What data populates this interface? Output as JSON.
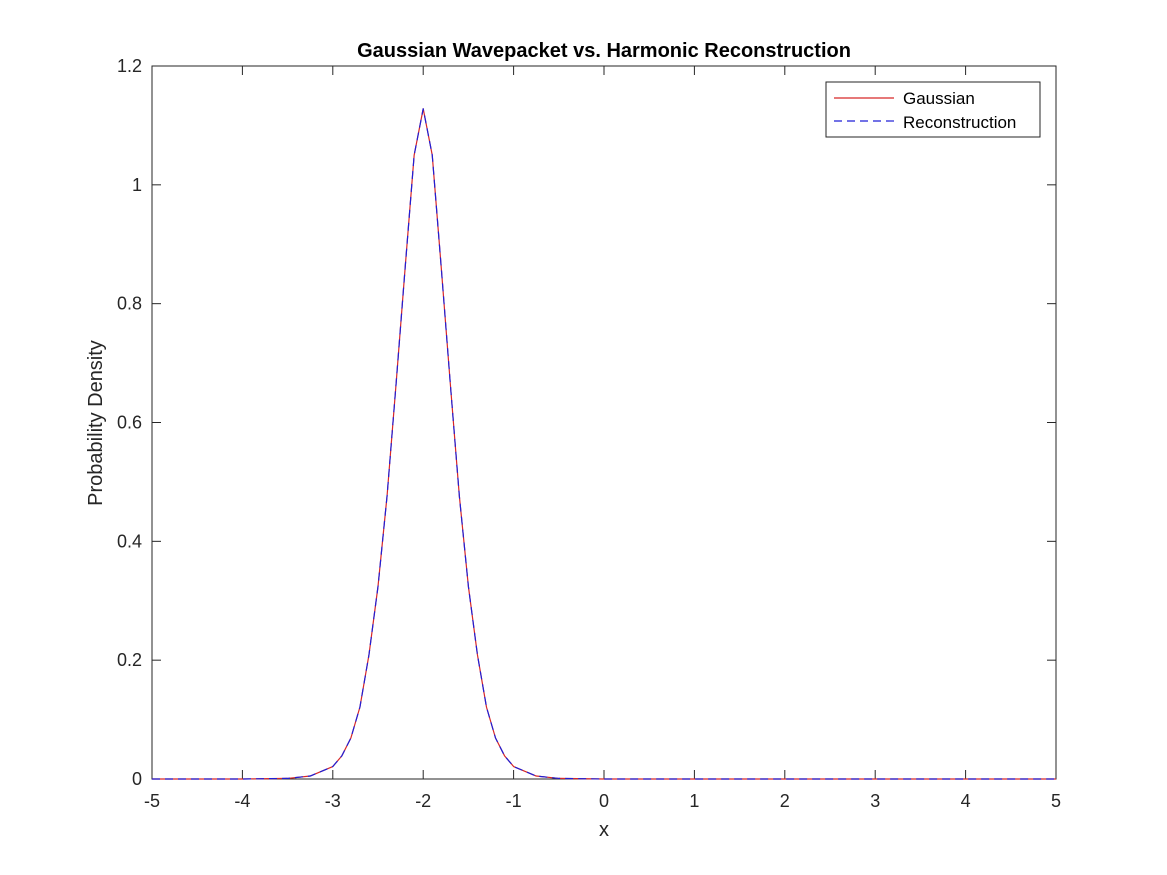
{
  "chart_data": {
    "type": "line",
    "title": "Gaussian Wavepacket vs. Harmonic Reconstruction",
    "xlabel": "x",
    "ylabel": "Probability Density",
    "xlim": [
      -5,
      5
    ],
    "ylim": [
      0,
      1.2
    ],
    "xticks": [
      -5,
      -4,
      -3,
      -2,
      -1,
      0,
      1,
      2,
      3,
      4,
      5
    ],
    "xtick_labels": [
      "-5",
      "-4",
      "-3",
      "-2",
      "-1",
      "0",
      "1",
      "2",
      "3",
      "4",
      "5"
    ],
    "yticks": [
      0,
      0.2,
      0.4,
      0.6,
      0.8,
      1,
      1.2
    ],
    "ytick_labels": [
      "0",
      "0.2",
      "0.4",
      "0.6",
      "0.8",
      "1",
      "1.2"
    ],
    "grid": false,
    "legend_position": "top-right",
    "series": [
      {
        "name": "Gaussian",
        "style": "solid",
        "color": "#d62728",
        "x": [
          -5,
          -4.5,
          -4,
          -3.5,
          -3.25,
          -3,
          -2.9,
          -2.8,
          -2.7,
          -2.6,
          -2.5,
          -2.4,
          -2.3,
          -2.2,
          -2.1,
          -2,
          -1.9,
          -1.8,
          -1.7,
          -1.6,
          -1.5,
          -1.4,
          -1.3,
          -1.2,
          -1.1,
          -1,
          -0.75,
          -0.5,
          0,
          1,
          2,
          3,
          4,
          5
        ],
        "y": [
          0,
          0,
          0,
          0.001,
          0.005,
          0.021,
          0.039,
          0.069,
          0.121,
          0.209,
          0.324,
          0.476,
          0.665,
          0.86,
          1.05,
          1.128,
          1.05,
          0.86,
          0.665,
          0.476,
          0.324,
          0.209,
          0.121,
          0.069,
          0.039,
          0.021,
          0.005,
          0.001,
          0,
          0,
          0,
          0,
          0,
          0
        ]
      },
      {
        "name": "Reconstruction",
        "style": "dashed",
        "color": "#1f1fd6",
        "x": [
          -5,
          -4.5,
          -4,
          -3.5,
          -3.25,
          -3,
          -2.9,
          -2.8,
          -2.7,
          -2.6,
          -2.5,
          -2.4,
          -2.3,
          -2.2,
          -2.1,
          -2,
          -1.9,
          -1.8,
          -1.7,
          -1.6,
          -1.5,
          -1.4,
          -1.3,
          -1.2,
          -1.1,
          -1,
          -0.75,
          -0.5,
          0,
          1,
          2,
          3,
          4,
          5
        ],
        "y": [
          0,
          0,
          0,
          0.001,
          0.005,
          0.021,
          0.039,
          0.069,
          0.121,
          0.209,
          0.324,
          0.476,
          0.665,
          0.86,
          1.05,
          1.128,
          1.05,
          0.86,
          0.665,
          0.476,
          0.324,
          0.209,
          0.121,
          0.069,
          0.039,
          0.021,
          0.005,
          0.001,
          0,
          0,
          0,
          0,
          0,
          0
        ]
      }
    ]
  }
}
